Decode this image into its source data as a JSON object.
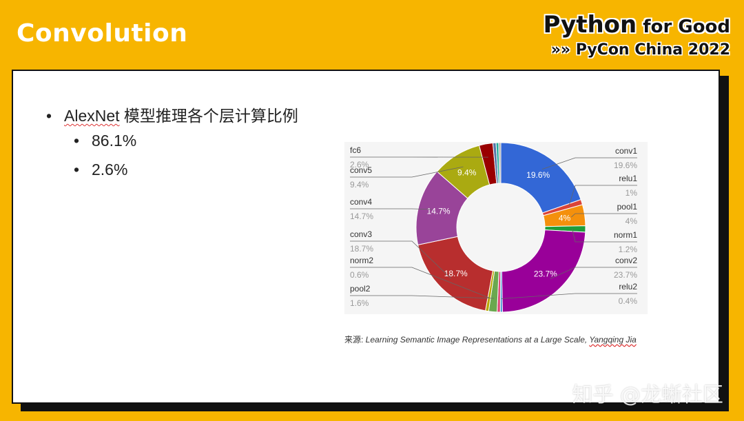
{
  "header": {
    "slide_title": "Convolution",
    "brand_main": "Python",
    "brand_small": " for Good",
    "brand_arrows": "»»",
    "brand_event": "PyCon China 2022"
  },
  "content": {
    "bullet_main_prefix": "AlexNet",
    "bullet_main_suffix": " 模型推理各个层计算比例",
    "bullet_sub_1": "86.1%",
    "bullet_sub_2": "2.6%",
    "bullet_glyph": "•"
  },
  "source": {
    "prefix": "来源: ",
    "title": "Learning Semantic Image Representations at a Large Scale, ",
    "author": "Yangqing Jia"
  },
  "watermark": "知乎 @龙蜥社区",
  "colors": {
    "background": "#f7b500",
    "card": "#ffffff",
    "label_gray": "#999999"
  },
  "chart_data": {
    "type": "pie",
    "donut": true,
    "slices": [
      {
        "name": "conv1",
        "value": 19.6,
        "color": "#3367d6",
        "label": "19.6%",
        "inner_label": "19.6%"
      },
      {
        "name": "relu1",
        "value": 1,
        "color": "#db4437",
        "label": "1%",
        "inner_label": ""
      },
      {
        "name": "pool1",
        "value": 4,
        "color": "#f4900c",
        "label": "4%",
        "inner_label": "4%"
      },
      {
        "name": "norm1",
        "value": 1.2,
        "color": "#1e9d3a",
        "label": "1.2%",
        "inner_label": ""
      },
      {
        "name": "conv2",
        "value": 23.7,
        "color": "#990099",
        "label": "23.7%",
        "inner_label": "23.7%"
      },
      {
        "name": "relu2",
        "value": 0.4,
        "color": "#3b8fd0",
        "label": "0.4%",
        "inner_label": ""
      },
      {
        "name": "",
        "value": 0.6,
        "color": "#dd4477",
        "label": "",
        "inner_label": ""
      },
      {
        "name": "pool2",
        "value": 1.6,
        "color": "#6aa84f",
        "label": "1.6%",
        "inner_label": ""
      },
      {
        "name": "norm2",
        "value": 0.6,
        "color": "#b8a500",
        "label": "0.6%",
        "inner_label": ""
      },
      {
        "name": "conv3",
        "value": 18.7,
        "color": "#b82e2e",
        "label": "18.7%",
        "inner_label": "18.7%"
      },
      {
        "name": "conv4",
        "value": 14.7,
        "color": "#994499",
        "label": "14.7%",
        "inner_label": "14.7%"
      },
      {
        "name": "conv5",
        "value": 9.4,
        "color": "#aaaa11",
        "label": "9.4%",
        "inner_label": "9.4%"
      },
      {
        "name": "fc6",
        "value": 2.6,
        "color": "#990000",
        "label": "2.6%",
        "inner_label": ""
      },
      {
        "name": "",
        "value": 0.6,
        "color": "#5574a6",
        "label": "",
        "inner_label": ""
      },
      {
        "name": "",
        "value": 0.5,
        "color": "#22aa99",
        "label": "",
        "inner_label": ""
      },
      {
        "name": "",
        "value": 0.4,
        "color": "#aaaaaa",
        "label": "",
        "inner_label": ""
      }
    ]
  }
}
